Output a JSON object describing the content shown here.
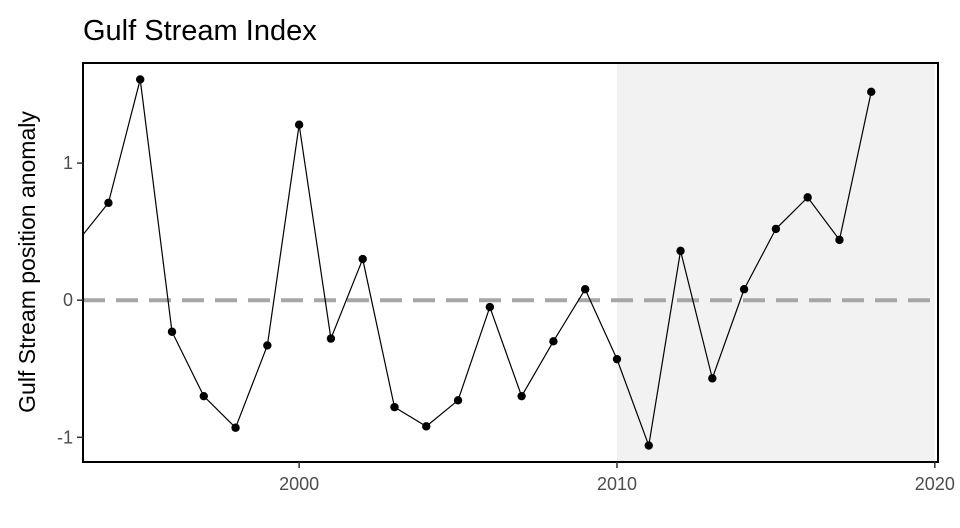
{
  "chart_data": {
    "type": "line",
    "title": "Gulf Stream Index",
    "xlabel": "",
    "ylabel": "Gulf Stream position anomaly",
    "xlim": [
      1993.2,
      2020.1
    ],
    "ylim": [
      -1.18,
      1.73
    ],
    "x_ticks": [
      2000,
      2010,
      2020
    ],
    "y_ticks": [
      -1,
      0,
      1
    ],
    "grid": false,
    "legend": "none",
    "reference_line": {
      "y": 0,
      "style": "dashed",
      "color": "#a6a6a6"
    },
    "shaded_region": {
      "x_start": 2010,
      "x_end": 2020,
      "color": "#f2f2f2"
    },
    "series": [
      {
        "color": "#000000",
        "x": [
          1993,
          1994,
          1995,
          1996,
          1997,
          1998,
          1999,
          2000,
          2001,
          2002,
          2003,
          2004,
          2005,
          2006,
          2007,
          2008,
          2009,
          2010,
          2011,
          2012,
          2013,
          2014,
          2015,
          2016,
          2017,
          2018
        ],
        "y": [
          0.42,
          0.71,
          1.61,
          -0.23,
          -0.7,
          -0.93,
          -0.33,
          1.28,
          -0.28,
          0.3,
          -0.78,
          -0.92,
          -0.73,
          -0.05,
          -0.7,
          -0.3,
          0.08,
          -0.43,
          -1.06,
          0.36,
          -0.57,
          0.08,
          0.52,
          0.75,
          0.44,
          1.52
        ]
      }
    ]
  }
}
